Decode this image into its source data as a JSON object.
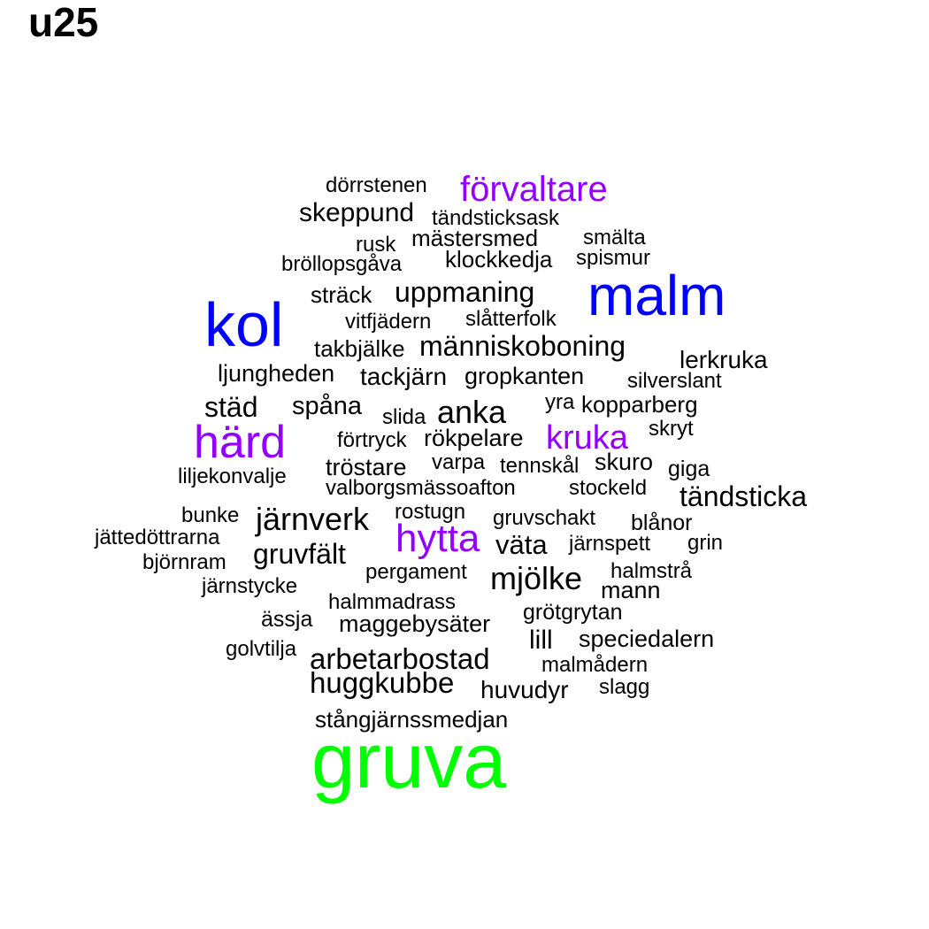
{
  "title": "u25",
  "colors": {
    "large": "#0000ff",
    "medium": "#9400ff",
    "top": "#00ff00",
    "small": "#000000"
  },
  "words": [
    {
      "text": "gruva",
      "tier": "top"
    },
    {
      "text": "kol",
      "tier": "large"
    },
    {
      "text": "malm",
      "tier": "large"
    },
    {
      "text": "förvaltare",
      "tier": "medium"
    },
    {
      "text": "härd",
      "tier": "medium"
    },
    {
      "text": "kruka",
      "tier": "medium"
    },
    {
      "text": "hytta",
      "tier": "medium"
    },
    {
      "text": "dörrstenen",
      "tier": "small"
    },
    {
      "text": "skeppund",
      "tier": "small"
    },
    {
      "text": "tändsticksask",
      "tier": "small"
    },
    {
      "text": "rusk",
      "tier": "small"
    },
    {
      "text": "mästersmed",
      "tier": "small"
    },
    {
      "text": "smälta",
      "tier": "small"
    },
    {
      "text": "bröllopsgåva",
      "tier": "small"
    },
    {
      "text": "klockkedja",
      "tier": "small"
    },
    {
      "text": "spismur",
      "tier": "small"
    },
    {
      "text": "sträck",
      "tier": "small"
    },
    {
      "text": "uppmaning",
      "tier": "small"
    },
    {
      "text": "vitfjädern",
      "tier": "small"
    },
    {
      "text": "slåtterfolk",
      "tier": "small"
    },
    {
      "text": "takbjälke",
      "tier": "small"
    },
    {
      "text": "människoboning",
      "tier": "small"
    },
    {
      "text": "lerkruka",
      "tier": "small"
    },
    {
      "text": "ljungheden",
      "tier": "small"
    },
    {
      "text": "tackjärn",
      "tier": "small"
    },
    {
      "text": "gropkanten",
      "tier": "small"
    },
    {
      "text": "silverslant",
      "tier": "small"
    },
    {
      "text": "städ",
      "tier": "small"
    },
    {
      "text": "spåna",
      "tier": "small"
    },
    {
      "text": "slida",
      "tier": "small"
    },
    {
      "text": "anka",
      "tier": "small"
    },
    {
      "text": "yra",
      "tier": "small"
    },
    {
      "text": "kopparberg",
      "tier": "small"
    },
    {
      "text": "förtryck",
      "tier": "small"
    },
    {
      "text": "rökpelare",
      "tier": "small"
    },
    {
      "text": "skryt",
      "tier": "small"
    },
    {
      "text": "tröstare",
      "tier": "small"
    },
    {
      "text": "varpa",
      "tier": "small"
    },
    {
      "text": "tennskål",
      "tier": "small"
    },
    {
      "text": "skuro",
      "tier": "small"
    },
    {
      "text": "giga",
      "tier": "small"
    },
    {
      "text": "liljekonvalje",
      "tier": "small"
    },
    {
      "text": "valborgsmässoafton",
      "tier": "small"
    },
    {
      "text": "stockeld",
      "tier": "small"
    },
    {
      "text": "tändsticka",
      "tier": "small"
    },
    {
      "text": "bunke",
      "tier": "small"
    },
    {
      "text": "järnverk",
      "tier": "small"
    },
    {
      "text": "rostugn",
      "tier": "small"
    },
    {
      "text": "gruvschakt",
      "tier": "small"
    },
    {
      "text": "blånor",
      "tier": "small"
    },
    {
      "text": "jättedöttrarna",
      "tier": "small"
    },
    {
      "text": "väta",
      "tier": "small"
    },
    {
      "text": "järnspett",
      "tier": "small"
    },
    {
      "text": "grin",
      "tier": "small"
    },
    {
      "text": "björnram",
      "tier": "small"
    },
    {
      "text": "gruvfält",
      "tier": "small"
    },
    {
      "text": "pergament",
      "tier": "small"
    },
    {
      "text": "mjölke",
      "tier": "small"
    },
    {
      "text": "halmstrå",
      "tier": "small"
    },
    {
      "text": "järnstycke",
      "tier": "small"
    },
    {
      "text": "mann",
      "tier": "small"
    },
    {
      "text": "halmmadrass",
      "tier": "small"
    },
    {
      "text": "grötgrytan",
      "tier": "small"
    },
    {
      "text": "ässja",
      "tier": "small"
    },
    {
      "text": "maggebysäter",
      "tier": "small"
    },
    {
      "text": "lill",
      "tier": "small"
    },
    {
      "text": "speciedalern",
      "tier": "small"
    },
    {
      "text": "golvtilja",
      "tier": "small"
    },
    {
      "text": "arbetarbostad",
      "tier": "small"
    },
    {
      "text": "malmådern",
      "tier": "small"
    },
    {
      "text": "huggkubbe",
      "tier": "small"
    },
    {
      "text": "huvudyr",
      "tier": "small"
    },
    {
      "text": "slagg",
      "tier": "small"
    },
    {
      "text": "stångjärnssmedjan",
      "tier": "small"
    }
  ]
}
